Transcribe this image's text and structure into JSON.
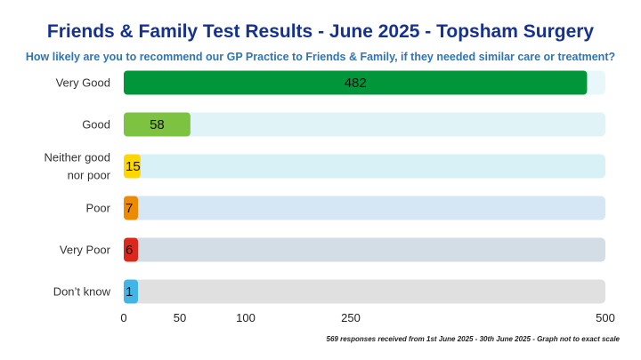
{
  "chart_data": {
    "type": "bar",
    "orientation": "horizontal",
    "title": "Friends & Family Test Results - June 2025 - Topsham Surgery",
    "subtitle": "How likely are you to recommend our GP Practice to Friends & Family, if they needed similar care or treatment?",
    "categories": [
      "Very Good",
      "Good",
      "Neither good nor poor",
      "Poor",
      "Very Poor",
      "Don’t know"
    ],
    "category_lines": [
      [
        "Very Good"
      ],
      [
        "Good"
      ],
      [
        "Neither good",
        "nor poor"
      ],
      [
        "Poor"
      ],
      [
        "Very Poor"
      ],
      [
        "Don’t know"
      ]
    ],
    "values": [
      482,
      58,
      15,
      7,
      6,
      1
    ],
    "value_labels": [
      "482",
      "58",
      "15",
      "7",
      "6",
      "1"
    ],
    "bar_colors": [
      "#009639",
      "#7dc241",
      "#ffd700",
      "#ed8b00",
      "#da291c",
      "#41b6e6"
    ],
    "track_colors": [
      "#e8f7f9",
      "#e0f4f8",
      "#d8f1f7",
      "#d5e6f5",
      "#d3dde6",
      "#e0e0e0"
    ],
    "xtick_values": [
      0,
      50,
      100,
      250,
      500
    ],
    "xtick_labels": [
      "0",
      "50",
      "100",
      "250",
      "500"
    ],
    "xlim": [
      0,
      500
    ],
    "scale_note": "not to exact scale",
    "grid": false,
    "legend": "none"
  },
  "footnote": "569 responses received from 1st June 2025 - 30th June 2025 - Graph not to exact scale"
}
